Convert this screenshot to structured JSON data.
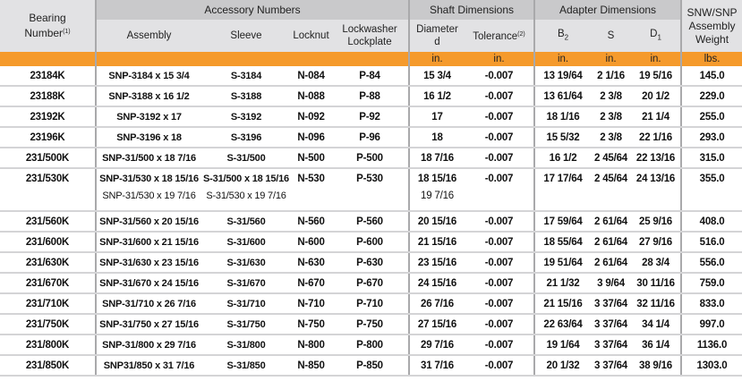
{
  "header": {
    "bearing": "Bearing",
    "bearing2": "Number",
    "bearing_note": "(1)",
    "accessory": "Accessory Numbers",
    "assembly": "Assembly",
    "sleeve": "Sleeve",
    "locknut": "Locknut",
    "lockwasher": "Lockwasher",
    "lockplate": "Lockplate",
    "shaft": "Shaft Dimensions",
    "diameter": "Diameter",
    "diameter_sym": "d",
    "tolerance": "Tolerance",
    "tolerance_note": "(2)",
    "adapter": "Adapter Dimensions",
    "b2": "B",
    "b2_sub": "2",
    "s": "S",
    "d1": "D",
    "d1_sub": "1",
    "weight1": "SNW/SNP",
    "weight2": "Assembly",
    "weight3": "Weight"
  },
  "units": [
    "",
    "",
    "",
    "",
    "",
    "in.",
    "in.",
    "in.",
    "in.",
    "in.",
    "lbs."
  ],
  "rows": [
    {
      "bearing": "23184K",
      "assembly": "SNP-3184 x 15 3/4",
      "sleeve": "S-3184",
      "locknut": "N-084",
      "lockwasher": "P-84",
      "diameter": "15 3/4",
      "tolerance": "-0.007",
      "b2": "13 19/64",
      "s": "2 1/16",
      "d1": "19 5/16",
      "weight": "145.0"
    },
    {
      "bearing": "23188K",
      "assembly": "SNP-3188 x 16 1/2",
      "sleeve": "S-3188",
      "locknut": "N-088",
      "lockwasher": "P-88",
      "diameter": "16 1/2",
      "tolerance": "-0.007",
      "b2": "13 61/64",
      "s": "2 3/8",
      "d1": "20 1/2",
      "weight": "229.0"
    },
    {
      "bearing": "23192K",
      "assembly": "SNP-3192 x 17",
      "sleeve": "S-3192",
      "locknut": "N-092",
      "lockwasher": "P-92",
      "diameter": "17",
      "tolerance": "-0.007",
      "b2": "18 1/16",
      "s": "2 3/8",
      "d1": "21 1/4",
      "weight": "255.0"
    },
    {
      "bearing": "23196K",
      "assembly": "SNP-3196 x 18",
      "sleeve": "S-3196",
      "locknut": "N-096",
      "lockwasher": "P-96",
      "diameter": "18",
      "tolerance": "-0.007",
      "b2": "15 5/32",
      "s": "2 3/8",
      "d1": "22 1/16",
      "weight": "293.0"
    },
    {
      "bearing": "231/500K",
      "assembly": "SNP-31/500 x 18 7/16",
      "sleeve": "S-31/500",
      "locknut": "N-500",
      "lockwasher": "P-500",
      "diameter": "18 7/16",
      "tolerance": "-0.007",
      "b2": "16 1/2",
      "s": "2 45/64",
      "d1": "22 13/16",
      "weight": "315.0"
    },
    {
      "bearing": "231/530K",
      "assembly": "SNP-31/530 x 18 15/16",
      "assembly2": "SNP-31/530 x 19 7/16",
      "sleeve": "S-31/500 x 18 15/16",
      "sleeve2": "S-31/530 x 19 7/16",
      "locknut": "N-530",
      "lockwasher": "P-530",
      "diameter": "18 15/16",
      "diameter2": "19 7/16",
      "tolerance": "-0.007",
      "b2": "17 17/64",
      "s": "2 45/64",
      "d1": "24 13/16",
      "weight": "355.0"
    },
    {
      "bearing": "231/560K",
      "assembly": "SNP-31/560 x 20 15/16",
      "sleeve": "S-31/560",
      "locknut": "N-560",
      "lockwasher": "P-560",
      "diameter": "20 15/16",
      "tolerance": "-0.007",
      "b2": "17 59/64",
      "s": "2 61/64",
      "d1": "25 9/16",
      "weight": "408.0"
    },
    {
      "bearing": "231/600K",
      "assembly": "SNP-31/600 x 21 15/16",
      "sleeve": "S-31/600",
      "locknut": "N-600",
      "lockwasher": "P-600",
      "diameter": "21 15/16",
      "tolerance": "-0.007",
      "b2": "18 55/64",
      "s": "2 61/64",
      "d1": "27 9/16",
      "weight": "516.0"
    },
    {
      "bearing": "231/630K",
      "assembly": "SNP-31/630 x 23 15/16",
      "sleeve": "S-31/630",
      "locknut": "N-630",
      "lockwasher": "P-630",
      "diameter": "23 15/16",
      "tolerance": "-0.007",
      "b2": "19 51/64",
      "s": "2 61/64",
      "d1": "28 3/4",
      "weight": "556.0"
    },
    {
      "bearing": "231/670K",
      "assembly": "SNP-31/670 x 24 15/16",
      "sleeve": "S-31/670",
      "locknut": "N-670",
      "lockwasher": "P-670",
      "diameter": "24 15/16",
      "tolerance": "-0.007",
      "b2": "21 1/32",
      "s": "3 9/64",
      "d1": "30 11/16",
      "weight": "759.0"
    },
    {
      "bearing": "231/710K",
      "assembly": "SNP-31/710 x 26 7/16",
      "sleeve": "S-31/710",
      "locknut": "N-710",
      "lockwasher": "P-710",
      "diameter": "26 7/16",
      "tolerance": "-0.007",
      "b2": "21 15/16",
      "s": "3 37/64",
      "d1": "32 11/16",
      "weight": "833.0"
    },
    {
      "bearing": "231/750K",
      "assembly": "SNP-31/750 x 27 15/16",
      "sleeve": "S-31/750",
      "locknut": "N-750",
      "lockwasher": "P-750",
      "diameter": "27 15/16",
      "tolerance": "-0.007",
      "b2": "22 63/64",
      "s": "3 37/64",
      "d1": "34 1/4",
      "weight": "997.0"
    },
    {
      "bearing": "231/800K",
      "assembly": "SNP-31/800 x 29 7/16",
      "sleeve": "S-31/800",
      "locknut": "N-800",
      "lockwasher": "P-800",
      "diameter": "29 7/16",
      "tolerance": "-0.007",
      "b2": "19 1/64",
      "s": "3 37/64",
      "d1": "36 1/4",
      "weight": "1136.0"
    },
    {
      "bearing": "231/850K",
      "assembly": "SNP31/850 x 31 7/16",
      "sleeve": "S-31/850",
      "locknut": "N-850",
      "lockwasher": "P-850",
      "diameter": "31 7/16",
      "tolerance": "-0.007",
      "b2": "20 1/32",
      "s": "3 37/64",
      "d1": "38 9/16",
      "weight": "1303.0"
    }
  ]
}
